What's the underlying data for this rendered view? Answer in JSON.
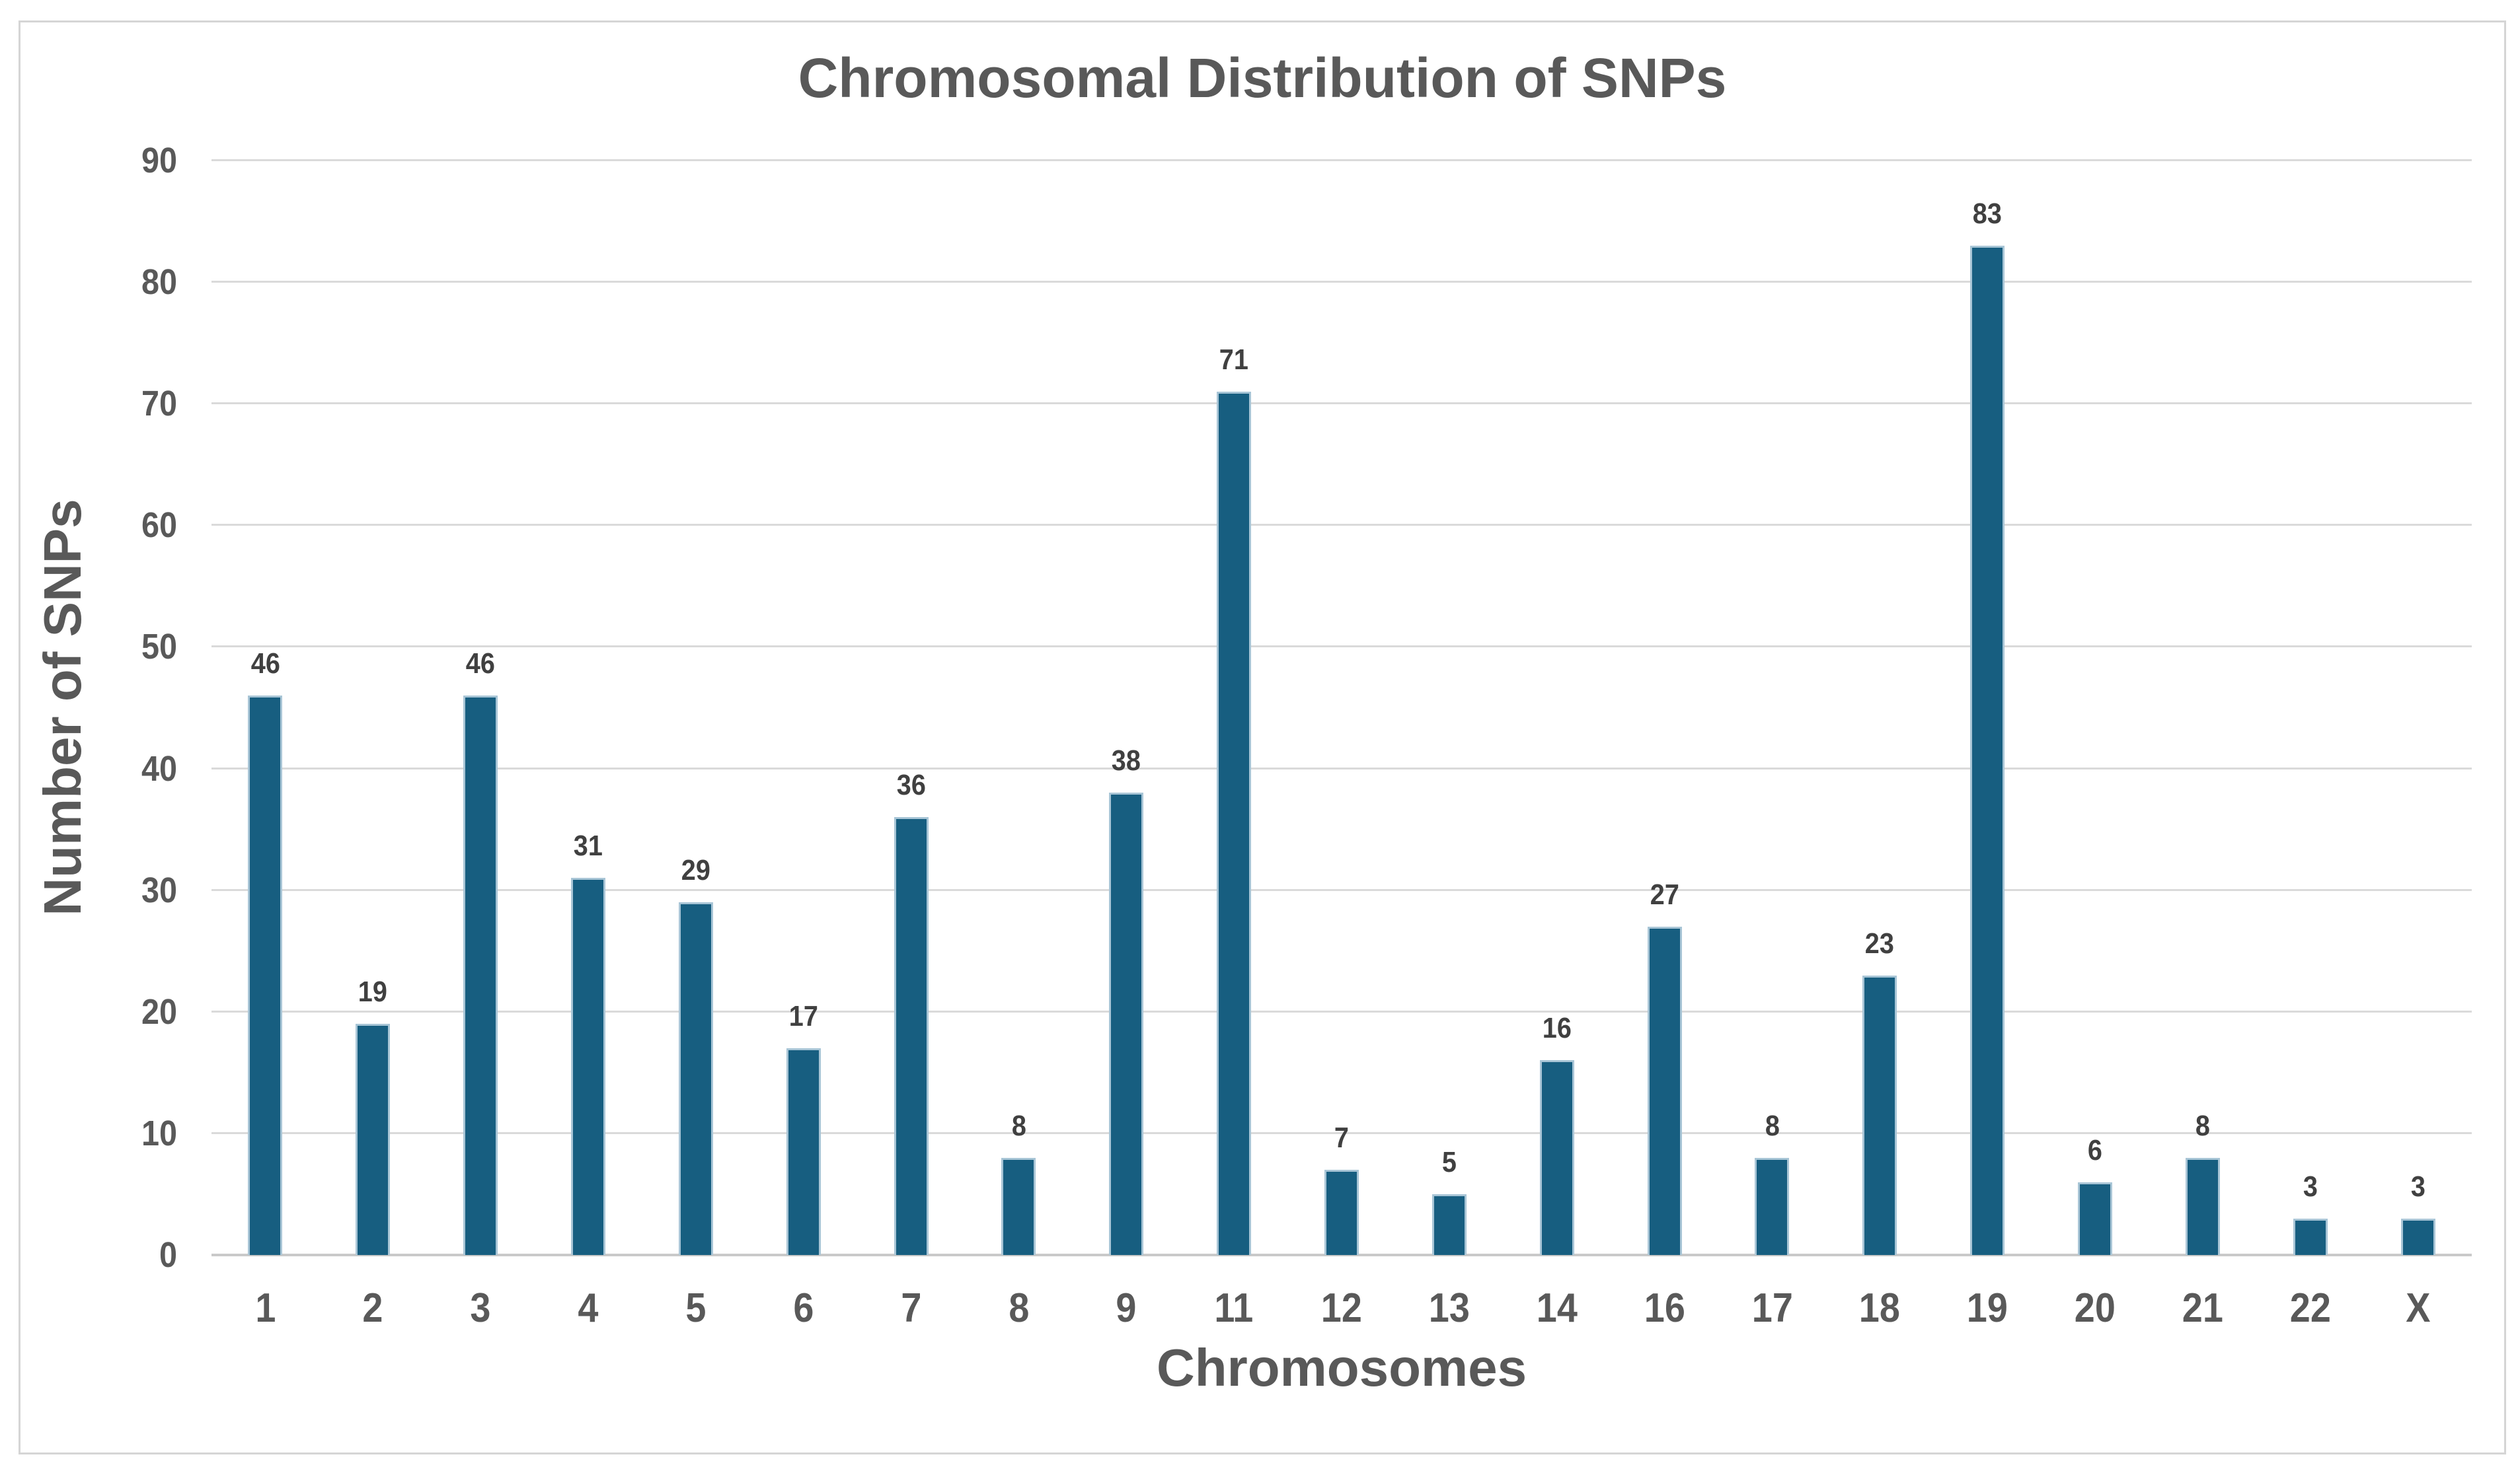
{
  "chart_data": {
    "type": "bar",
    "title": "Chromosomal Distribution of SNPs",
    "xlabel": "Chromosomes",
    "ylabel": "Number of SNPs",
    "categories": [
      "1",
      "2",
      "3",
      "4",
      "5",
      "6",
      "7",
      "8",
      "9",
      "11",
      "12",
      "13",
      "14",
      "16",
      "17",
      "18",
      "19",
      "20",
      "21",
      "22",
      "X"
    ],
    "values": [
      46,
      19,
      46,
      31,
      29,
      17,
      36,
      8,
      38,
      71,
      7,
      5,
      16,
      27,
      8,
      23,
      83,
      6,
      8,
      3,
      3
    ],
    "ylim": [
      0,
      90
    ],
    "y_ticks": [
      0,
      10,
      20,
      30,
      40,
      50,
      60,
      70,
      80,
      90
    ],
    "grid": "horizontal",
    "legend": "none",
    "data_labels": true
  },
  "style": {
    "bar_color": "#175E80",
    "bar_edge_color": "#A8C5D6",
    "text_color": "#595959",
    "data_label_color": "#404040",
    "gridline_color": "#DADADA",
    "axis_line_color": "#C9C9C9",
    "frame_border_color": "#D5D5D5",
    "background_color": "#FFFFFF"
  }
}
